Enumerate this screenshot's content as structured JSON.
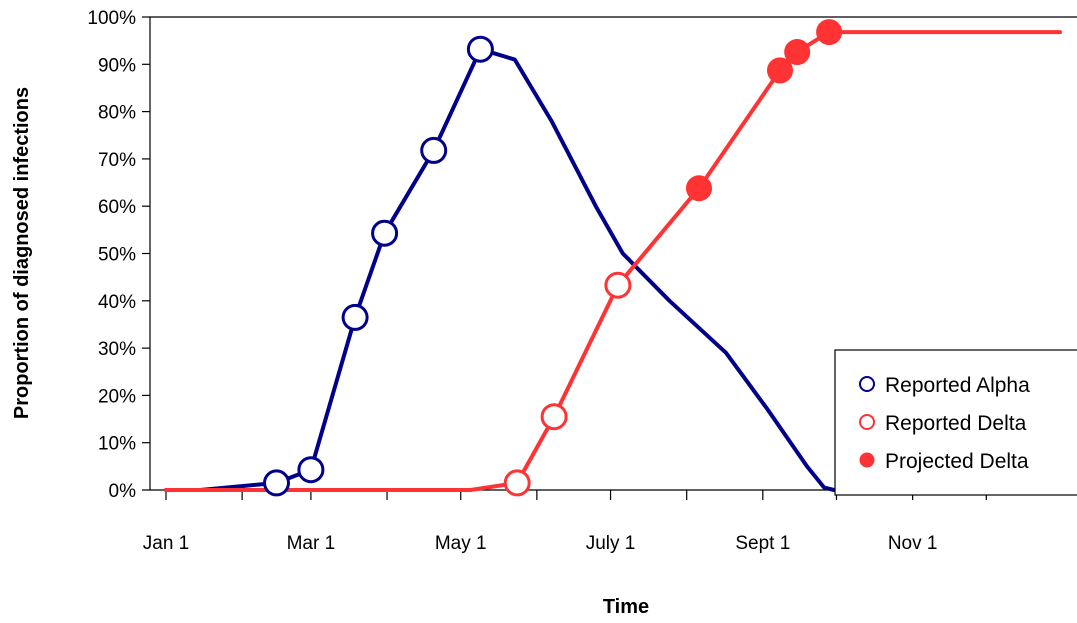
{
  "chart_data": {
    "type": "line",
    "title": "",
    "xlabel": "Time",
    "ylabel": "Proportion of diagnosed infections",
    "ylim": [
      0,
      100
    ],
    "y_ticks": [
      "0%",
      "10%",
      "20%",
      "30%",
      "40%",
      "50%",
      "60%",
      "70%",
      "80%",
      "90%",
      "100%"
    ],
    "x_range": [
      "2021-01-01",
      "2021-12-31"
    ],
    "x_ticks": [
      {
        "label": "Jan 1",
        "date": "2021-01-01"
      },
      {
        "label": "Mar 1",
        "date": "2021-03-01"
      },
      {
        "label": "May 1",
        "date": "2021-05-01"
      },
      {
        "label": "July 1",
        "date": "2021-07-01"
      },
      {
        "label": "Sept 1",
        "date": "2021-09-01"
      },
      {
        "label": "Nov 1",
        "date": "2021-11-01"
      }
    ],
    "x_minor_ticks": [
      "2021-02-01",
      "2021-04-01",
      "2021-06-01",
      "2021-08-01",
      "2021-10-01",
      "2021-12-01"
    ],
    "grid": false,
    "legend_position": "bottom-right",
    "curves": [
      {
        "name": "Alpha",
        "color": "#00008B",
        "points": [
          {
            "x": "2021-01-01",
            "y": 0
          },
          {
            "x": "2021-01-15",
            "y": 0
          },
          {
            "x": "2021-02-15",
            "y": 1.5
          },
          {
            "x": "2021-03-01",
            "y": 4.3
          },
          {
            "x": "2021-03-19",
            "y": 36.5
          },
          {
            "x": "2021-03-31",
            "y": 54.3
          },
          {
            "x": "2021-04-20",
            "y": 71.8
          },
          {
            "x": "2021-05-09",
            "y": 93.2
          },
          {
            "x": "2021-05-23",
            "y": 91
          },
          {
            "x": "2021-06-07",
            "y": 78
          },
          {
            "x": "2021-06-25",
            "y": 60
          },
          {
            "x": "2021-07-06",
            "y": 50
          },
          {
            "x": "2021-07-25",
            "y": 40
          },
          {
            "x": "2021-08-17",
            "y": 29
          },
          {
            "x": "2021-09-03",
            "y": 17
          },
          {
            "x": "2021-09-19",
            "y": 5
          },
          {
            "x": "2021-09-26",
            "y": 0.5
          },
          {
            "x": "2021-09-30",
            "y": 0
          }
        ]
      },
      {
        "name": "Delta",
        "color": "#FF3333",
        "points": [
          {
            "x": "2021-01-01",
            "y": 0
          },
          {
            "x": "2021-05-05",
            "y": 0
          },
          {
            "x": "2021-05-24",
            "y": 1.5
          },
          {
            "x": "2021-06-08",
            "y": 15.5
          },
          {
            "x": "2021-07-04",
            "y": 43.3
          },
          {
            "x": "2021-08-06",
            "y": 63.8
          },
          {
            "x": "2021-09-08",
            "y": 88.7
          },
          {
            "x": "2021-09-15",
            "y": 92.6
          },
          {
            "x": "2021-09-28",
            "y": 96.8
          },
          {
            "x": "2021-12-31",
            "y": 96.8
          }
        ]
      }
    ],
    "series": [
      {
        "name": "Reported Alpha",
        "marker": "open-circle",
        "color": "#00008B",
        "points": [
          {
            "x": "2021-02-15",
            "y": 1.5
          },
          {
            "x": "2021-03-01",
            "y": 4.3
          },
          {
            "x": "2021-03-19",
            "y": 36.5
          },
          {
            "x": "2021-03-31",
            "y": 54.3
          },
          {
            "x": "2021-04-20",
            "y": 71.8
          },
          {
            "x": "2021-05-09",
            "y": 93.2
          }
        ]
      },
      {
        "name": "Reported Delta",
        "marker": "open-circle",
        "color": "#FF3333",
        "points": [
          {
            "x": "2021-05-24",
            "y": 1.5
          },
          {
            "x": "2021-06-08",
            "y": 15.5
          },
          {
            "x": "2021-07-04",
            "y": 43.3
          }
        ]
      },
      {
        "name": "Projected Delta",
        "marker": "filled-circle",
        "color": "#FF3333",
        "points": [
          {
            "x": "2021-08-06",
            "y": 63.8
          },
          {
            "x": "2021-09-08",
            "y": 88.7
          },
          {
            "x": "2021-09-15",
            "y": 92.6
          },
          {
            "x": "2021-09-28",
            "y": 96.8
          }
        ]
      }
    ]
  }
}
